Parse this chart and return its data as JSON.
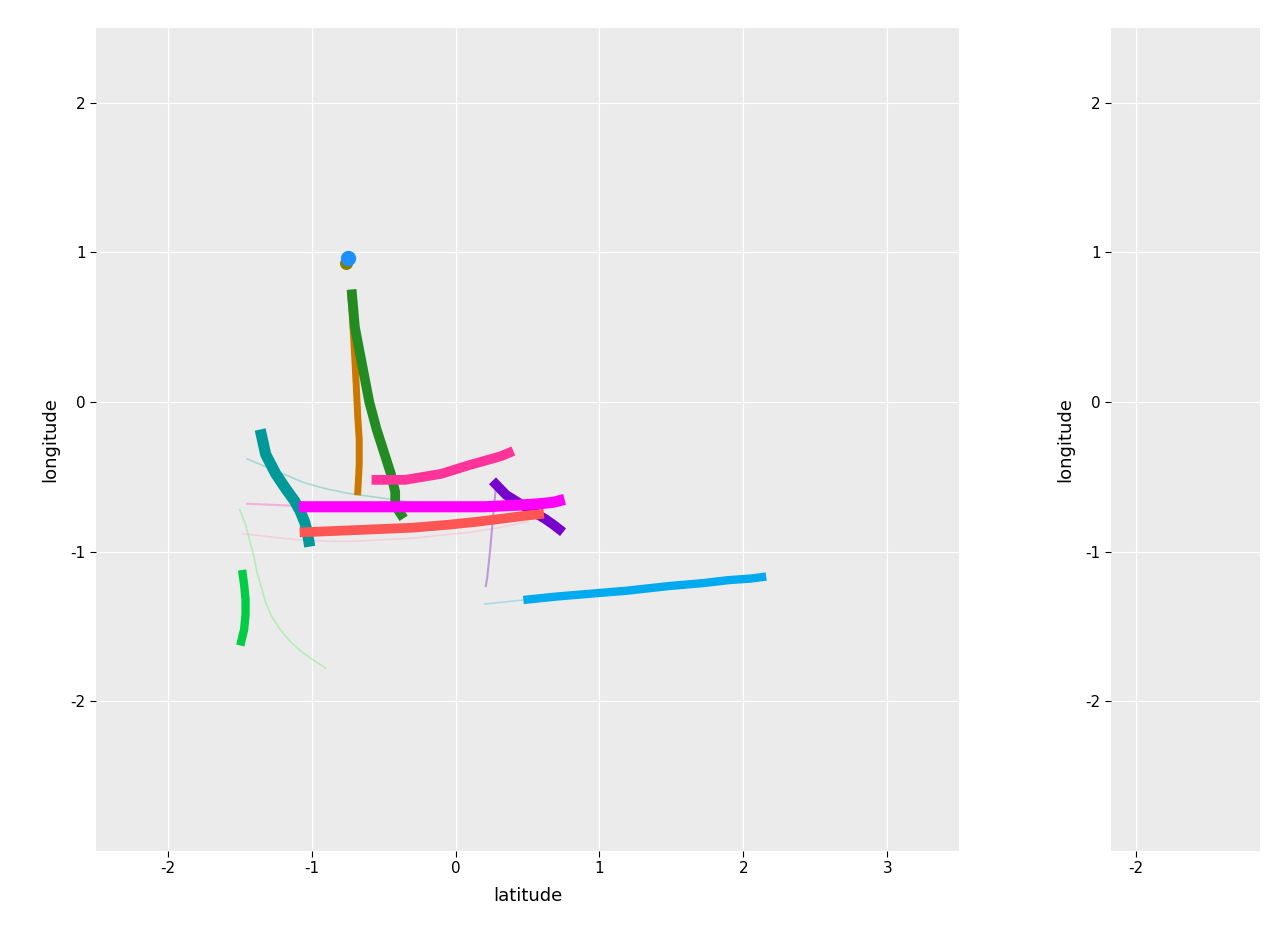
{
  "background_color": "#EBEBEB",
  "grid_color": "#FFFFFF",
  "xlim_main": [
    -2.5,
    3.5
  ],
  "ylim": [
    -3.0,
    2.5
  ],
  "xlim_right": [
    -2.5,
    0.5
  ],
  "xticks_main": [
    -2,
    -1,
    0,
    1,
    2,
    3
  ],
  "xticks_right": [
    -2
  ],
  "yticks": [
    -2,
    -1,
    0,
    1,
    2
  ],
  "xlabel": "latitude",
  "ylabel": "longitude",
  "trajectories": [
    {
      "name": "blue_dot",
      "color": "#1E8FFF",
      "linewidth": 0,
      "x": [
        -0.75
      ],
      "y": [
        0.96
      ],
      "dot": true,
      "dot_size": 100,
      "zorder": 10
    },
    {
      "name": "olive_dot",
      "color": "#808000",
      "linewidth": 0,
      "x": [
        -0.76
      ],
      "y": [
        0.93
      ],
      "dot": true,
      "dot_size": 70,
      "zorder": 9
    },
    {
      "name": "orange_brown_vertical",
      "color": "#CC7700",
      "linewidth": 5,
      "x": [
        -0.73,
        -0.72,
        -0.71,
        -0.7,
        -0.69,
        -0.68,
        -0.67,
        -0.67,
        -0.68
      ],
      "y": [
        0.72,
        0.6,
        0.45,
        0.28,
        0.1,
        -0.1,
        -0.25,
        -0.42,
        -0.6
      ],
      "dot": false,
      "smooth": true,
      "zorder": 5
    },
    {
      "name": "dark_green_vertical",
      "color": "#228B22",
      "linewidth": 7,
      "x": [
        -0.72,
        -0.7,
        -0.65,
        -0.6,
        -0.55,
        -0.5,
        -0.45,
        -0.42,
        -0.42,
        -0.4,
        -0.38
      ],
      "y": [
        0.72,
        0.5,
        0.25,
        0.0,
        -0.18,
        -0.33,
        -0.48,
        -0.6,
        -0.68,
        -0.72,
        -0.75
      ],
      "dot": false,
      "smooth": true,
      "zorder": 5
    },
    {
      "name": "teal_vertical",
      "color": "#009999",
      "linewidth": 8,
      "x": [
        -1.35,
        -1.32,
        -1.25,
        -1.18,
        -1.12,
        -1.08,
        -1.05,
        -1.03,
        -1.02
      ],
      "y": [
        -0.22,
        -0.35,
        -0.48,
        -0.58,
        -0.66,
        -0.73,
        -0.8,
        -0.87,
        -0.93
      ],
      "dot": false,
      "smooth": true,
      "zorder": 5
    },
    {
      "name": "bright_green_small",
      "color": "#00CC44",
      "linewidth": 6,
      "x": [
        -1.48,
        -1.47,
        -1.46,
        -1.46,
        -1.47,
        -1.49
      ],
      "y": [
        -1.15,
        -1.22,
        -1.32,
        -1.42,
        -1.52,
        -1.6
      ],
      "dot": false,
      "smooth": true,
      "zorder": 5
    },
    {
      "name": "hot_pink_arc",
      "color": "#FF3399",
      "linewidth": 7,
      "x": [
        -0.55,
        -0.35,
        -0.1,
        0.1,
        0.25,
        0.32,
        0.37
      ],
      "y": [
        -0.52,
        -0.52,
        -0.48,
        -0.42,
        -0.38,
        -0.36,
        -0.34
      ],
      "dot": false,
      "smooth": true,
      "zorder": 6
    },
    {
      "name": "magenta_long",
      "color": "#FF00FF",
      "linewidth": 8,
      "x": [
        -1.05,
        -0.8,
        -0.55,
        -0.3,
        -0.05,
        0.2,
        0.42,
        0.58,
        0.68,
        0.72
      ],
      "y": [
        -0.7,
        -0.7,
        -0.7,
        -0.7,
        -0.7,
        -0.7,
        -0.69,
        -0.68,
        -0.67,
        -0.66
      ],
      "dot": false,
      "smooth": true,
      "zorder": 7
    },
    {
      "name": "pink_faint_long",
      "color": "#FF88CC",
      "linewidth": 1.5,
      "alpha": 0.6,
      "x": [
        -1.45,
        -1.2,
        -0.95,
        -0.7,
        -0.45,
        -0.2,
        0.05,
        0.3,
        0.55,
        0.72
      ],
      "y": [
        -0.68,
        -0.69,
        -0.7,
        -0.7,
        -0.7,
        -0.7,
        -0.7,
        -0.7,
        -0.7,
        -0.69
      ],
      "dot": false,
      "smooth": true,
      "zorder": 3
    },
    {
      "name": "dark_purple",
      "color": "#7700CC",
      "linewidth": 7,
      "x": [
        0.28,
        0.35,
        0.45,
        0.55,
        0.62,
        0.68,
        0.72
      ],
      "y": [
        -0.55,
        -0.62,
        -0.68,
        -0.74,
        -0.78,
        -0.82,
        -0.85
      ],
      "dot": false,
      "smooth": true,
      "zorder": 6
    },
    {
      "name": "salmon_red",
      "color": "#FF5555",
      "linewidth": 7,
      "x": [
        -1.05,
        -0.8,
        -0.55,
        -0.3,
        -0.05,
        0.15,
        0.32,
        0.48,
        0.58
      ],
      "y": [
        -0.87,
        -0.86,
        -0.85,
        -0.84,
        -0.82,
        -0.8,
        -0.78,
        -0.76,
        -0.75
      ],
      "dot": false,
      "smooth": true,
      "zorder": 6
    },
    {
      "name": "cyan_long_right",
      "color": "#00AAEE",
      "linewidth": 6,
      "x": [
        0.5,
        0.7,
        0.95,
        1.2,
        1.48,
        1.72,
        1.9,
        2.05,
        2.13
      ],
      "y": [
        -1.32,
        -1.3,
        -1.28,
        -1.26,
        -1.23,
        -1.21,
        -1.19,
        -1.18,
        -1.17
      ],
      "dot": false,
      "smooth": true,
      "zorder": 5
    },
    {
      "name": "cyan_faint_start",
      "color": "#66CCDD",
      "linewidth": 1.2,
      "alpha": 0.5,
      "x": [
        0.2,
        0.3,
        0.4,
        0.5
      ],
      "y": [
        -1.35,
        -1.34,
        -1.33,
        -1.32
      ],
      "dot": false,
      "smooth": false,
      "zorder": 3
    },
    {
      "name": "purple_vertical_faint",
      "color": "#9966CC",
      "linewidth": 1.5,
      "alpha": 0.6,
      "x": [
        0.28,
        0.27,
        0.26,
        0.25,
        0.24,
        0.23,
        0.22,
        0.21
      ],
      "y": [
        -0.57,
        -0.67,
        -0.77,
        -0.88,
        -0.99,
        -1.08,
        -1.17,
        -1.23
      ],
      "dot": false,
      "smooth": true,
      "zorder": 3
    },
    {
      "name": "teal_faint_trail",
      "color": "#44BBAA",
      "linewidth": 1.2,
      "alpha": 0.4,
      "x": [
        -1.45,
        -1.35,
        -1.2,
        -1.05,
        -0.9,
        -0.75,
        -0.6,
        -0.45,
        -0.3,
        -0.15,
        0.0,
        0.15,
        0.3,
        0.45
      ],
      "y": [
        -0.38,
        -0.42,
        -0.48,
        -0.54,
        -0.58,
        -0.61,
        -0.63,
        -0.65,
        -0.67,
        -0.68,
        -0.69,
        -0.7,
        -0.7,
        -0.7
      ],
      "dot": false,
      "smooth": true,
      "zorder": 2
    },
    {
      "name": "light_green_faint_trail",
      "color": "#66EE66",
      "linewidth": 1.2,
      "alpha": 0.4,
      "x": [
        -1.5,
        -1.46,
        -1.43,
        -1.4,
        -1.38,
        -1.35,
        -1.32,
        -1.28,
        -1.22,
        -1.15,
        -1.07,
        -0.98,
        -0.9
      ],
      "y": [
        -0.72,
        -0.82,
        -0.93,
        -1.04,
        -1.14,
        -1.24,
        -1.34,
        -1.43,
        -1.52,
        -1.6,
        -1.67,
        -1.73,
        -1.78
      ],
      "dot": false,
      "smooth": true,
      "zorder": 2
    },
    {
      "name": "pink_faint_trail2",
      "color": "#FFAACC",
      "linewidth": 1.2,
      "alpha": 0.4,
      "x": [
        -1.48,
        -1.3,
        -1.1,
        -0.9,
        -0.7,
        -0.5,
        -0.3,
        -0.1,
        0.1,
        0.3,
        0.5
      ],
      "y": [
        -0.88,
        -0.9,
        -0.92,
        -0.93,
        -0.93,
        -0.92,
        -0.91,
        -0.89,
        -0.87,
        -0.84,
        -0.8
      ],
      "dot": false,
      "smooth": true,
      "zorder": 2
    }
  ]
}
